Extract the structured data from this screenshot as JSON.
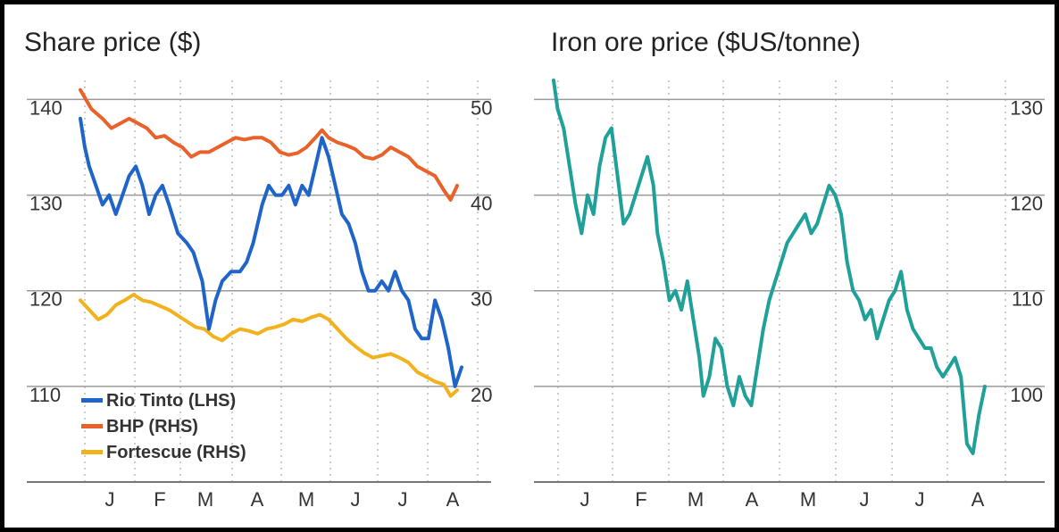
{
  "chart_data": [
    {
      "type": "line",
      "title": "Share price ($)",
      "xlabel": "",
      "ylabel": "",
      "x": [
        "J",
        "F",
        "M",
        "A",
        "M",
        "J",
        "J",
        "A"
      ],
      "y_left": {
        "ticks": [
          "110",
          "120",
          "130",
          "140"
        ],
        "ylim": [
          100,
          142
        ]
      },
      "y_right": {
        "ticks": [
          "20",
          "30",
          "40",
          "50"
        ],
        "ylim": [
          10,
          52
        ]
      },
      "grid": true,
      "legend_position": "bottom-left",
      "series": [
        {
          "name": "Rio Tinto (LHS)",
          "color": "#1f64c8",
          "axis": "left",
          "values": [
            [
              0,
              138
            ],
            [
              0.1,
              135
            ],
            [
              0.2,
              133
            ],
            [
              0.35,
              131
            ],
            [
              0.5,
              129
            ],
            [
              0.65,
              130
            ],
            [
              0.8,
              128
            ],
            [
              0.95,
              130
            ],
            [
              1.1,
              132
            ],
            [
              1.25,
              133
            ],
            [
              1.4,
              131
            ],
            [
              1.55,
              128
            ],
            [
              1.7,
              130
            ],
            [
              1.85,
              131
            ],
            [
              2.0,
              129
            ],
            [
              2.2,
              126
            ],
            [
              2.4,
              125
            ],
            [
              2.55,
              124
            ],
            [
              2.75,
              121
            ],
            [
              2.9,
              116
            ],
            [
              3.05,
              119
            ],
            [
              3.2,
              121
            ],
            [
              3.4,
              122
            ],
            [
              3.6,
              122
            ],
            [
              3.75,
              123
            ],
            [
              3.9,
              125
            ],
            [
              4.1,
              129
            ],
            [
              4.25,
              131
            ],
            [
              4.4,
              130
            ],
            [
              4.55,
              130
            ],
            [
              4.7,
              131
            ],
            [
              4.85,
              129
            ],
            [
              5.0,
              131
            ],
            [
              5.15,
              130
            ],
            [
              5.3,
              133
            ],
            [
              5.45,
              136
            ],
            [
              5.6,
              134
            ],
            [
              5.75,
              131
            ],
            [
              5.9,
              128
            ],
            [
              6.05,
              127
            ],
            [
              6.2,
              125
            ],
            [
              6.35,
              122
            ],
            [
              6.5,
              120
            ],
            [
              6.65,
              120
            ],
            [
              6.8,
              121
            ],
            [
              6.95,
              120
            ],
            [
              7.1,
              122
            ],
            [
              7.25,
              120
            ],
            [
              7.4,
              119
            ],
            [
              7.55,
              116
            ],
            [
              7.7,
              115
            ],
            [
              7.85,
              115
            ],
            [
              8.0,
              119
            ],
            [
              8.15,
              117
            ],
            [
              8.3,
              114
            ],
            [
              8.45,
              110
            ],
            [
              8.6,
              112
            ]
          ]
        },
        {
          "name": "BHP (RHS)",
          "color": "#e8622a",
          "axis": "right",
          "values": [
            [
              0,
              51
            ],
            [
              0.25,
              49
            ],
            [
              0.5,
              48
            ],
            [
              0.7,
              47
            ],
            [
              0.9,
              47.5
            ],
            [
              1.1,
              48
            ],
            [
              1.3,
              47.5
            ],
            [
              1.5,
              47
            ],
            [
              1.7,
              46
            ],
            [
              1.9,
              46.2
            ],
            [
              2.1,
              45.5
            ],
            [
              2.3,
              45
            ],
            [
              2.5,
              44
            ],
            [
              2.7,
              44.5
            ],
            [
              2.9,
              44.5
            ],
            [
              3.1,
              45
            ],
            [
              3.3,
              45.5
            ],
            [
              3.5,
              46
            ],
            [
              3.7,
              45.8
            ],
            [
              3.9,
              46
            ],
            [
              4.1,
              46
            ],
            [
              4.3,
              45.5
            ],
            [
              4.5,
              44.5
            ],
            [
              4.7,
              44.2
            ],
            [
              4.9,
              44.4
            ],
            [
              5.1,
              45
            ],
            [
              5.3,
              46
            ],
            [
              5.45,
              46.8
            ],
            [
              5.6,
              46
            ],
            [
              5.8,
              45.5
            ],
            [
              6.0,
              45.2
            ],
            [
              6.2,
              44.8
            ],
            [
              6.4,
              44
            ],
            [
              6.6,
              43.8
            ],
            [
              6.8,
              44.2
            ],
            [
              7.0,
              45
            ],
            [
              7.2,
              44.5
            ],
            [
              7.4,
              44
            ],
            [
              7.6,
              43
            ],
            [
              7.8,
              42.5
            ],
            [
              8.0,
              42
            ],
            [
              8.2,
              40.5
            ],
            [
              8.35,
              39.5
            ],
            [
              8.5,
              41
            ]
          ]
        },
        {
          "name": "Fortescue (RHS)",
          "color": "#f2b21d",
          "axis": "right",
          "values": [
            [
              0,
              29
            ],
            [
              0.2,
              28
            ],
            [
              0.4,
              27
            ],
            [
              0.6,
              27.5
            ],
            [
              0.8,
              28.5
            ],
            [
              1.0,
              29
            ],
            [
              1.2,
              29.6
            ],
            [
              1.4,
              29
            ],
            [
              1.6,
              28.8
            ],
            [
              1.8,
              28.4
            ],
            [
              2.0,
              28
            ],
            [
              2.2,
              27.4
            ],
            [
              2.4,
              26.8
            ],
            [
              2.6,
              26.2
            ],
            [
              2.8,
              26
            ],
            [
              3.0,
              25.2
            ],
            [
              3.2,
              24.8
            ],
            [
              3.4,
              25.5
            ],
            [
              3.6,
              26
            ],
            [
              3.8,
              25.8
            ],
            [
              4.0,
              25.5
            ],
            [
              4.2,
              26
            ],
            [
              4.4,
              26.2
            ],
            [
              4.6,
              26.5
            ],
            [
              4.8,
              27
            ],
            [
              5.0,
              26.8
            ],
            [
              5.2,
              27.2
            ],
            [
              5.4,
              27.5
            ],
            [
              5.6,
              27
            ],
            [
              5.8,
              26
            ],
            [
              6.0,
              25
            ],
            [
              6.2,
              24.2
            ],
            [
              6.4,
              23.5
            ],
            [
              6.6,
              23
            ],
            [
              6.8,
              23.2
            ],
            [
              7.0,
              23.4
            ],
            [
              7.2,
              23
            ],
            [
              7.4,
              22.5
            ],
            [
              7.6,
              21.5
            ],
            [
              7.8,
              21
            ],
            [
              8.0,
              20.5
            ],
            [
              8.2,
              20.2
            ],
            [
              8.35,
              19
            ],
            [
              8.5,
              19.6
            ]
          ]
        }
      ]
    },
    {
      "type": "line",
      "title": "Iron ore price ($US/tonne)",
      "xlabel": "",
      "ylabel": "",
      "x": [
        "J",
        "F",
        "M",
        "A",
        "M",
        "J",
        "J",
        "A"
      ],
      "y_right": {
        "ticks": [
          "100",
          "110",
          "120",
          "130"
        ],
        "ylim": [
          90,
          132
        ]
      },
      "grid": true,
      "series": [
        {
          "color": "#1fa19a",
          "values": [
            [
              0,
              132
            ],
            [
              0.1,
              129
            ],
            [
              0.25,
              127
            ],
            [
              0.4,
              123
            ],
            [
              0.55,
              119
            ],
            [
              0.7,
              116
            ],
            [
              0.85,
              120
            ],
            [
              1.0,
              118
            ],
            [
              1.15,
              123
            ],
            [
              1.3,
              126
            ],
            [
              1.45,
              127
            ],
            [
              1.6,
              122
            ],
            [
              1.75,
              117
            ],
            [
              1.9,
              118
            ],
            [
              2.05,
              120
            ],
            [
              2.2,
              122
            ],
            [
              2.35,
              124
            ],
            [
              2.5,
              121
            ],
            [
              2.6,
              116
            ],
            [
              2.75,
              113
            ],
            [
              2.9,
              109
            ],
            [
              3.05,
              110
            ],
            [
              3.2,
              108
            ],
            [
              3.35,
              111
            ],
            [
              3.5,
              107
            ],
            [
              3.65,
              103
            ],
            [
              3.75,
              99
            ],
            [
              3.9,
              101
            ],
            [
              4.05,
              105
            ],
            [
              4.2,
              104
            ],
            [
              4.35,
              100
            ],
            [
              4.5,
              98
            ],
            [
              4.65,
              101
            ],
            [
              4.8,
              99
            ],
            [
              4.95,
              98
            ],
            [
              5.1,
              102
            ],
            [
              5.25,
              106
            ],
            [
              5.4,
              109
            ],
            [
              5.55,
              111
            ],
            [
              5.7,
              113
            ],
            [
              5.85,
              115
            ],
            [
              6.0,
              116
            ],
            [
              6.15,
              117
            ],
            [
              6.3,
              118
            ],
            [
              6.45,
              116
            ],
            [
              6.6,
              117
            ],
            [
              6.75,
              119
            ],
            [
              6.9,
              121
            ],
            [
              7.05,
              120
            ],
            [
              7.2,
              118
            ],
            [
              7.35,
              113
            ],
            [
              7.5,
              110
            ],
            [
              7.65,
              109
            ],
            [
              7.8,
              107
            ],
            [
              7.95,
              108
            ],
            [
              8.1,
              105
            ],
            [
              8.25,
              107
            ],
            [
              8.4,
              109
            ],
            [
              8.55,
              110
            ],
            [
              8.7,
              112
            ],
            [
              8.85,
              108
            ],
            [
              9.0,
              106
            ],
            [
              9.15,
              105
            ],
            [
              9.3,
              104
            ],
            [
              9.45,
              104
            ],
            [
              9.6,
              102
            ],
            [
              9.75,
              101
            ],
            [
              9.9,
              102
            ],
            [
              10.05,
              103
            ],
            [
              10.2,
              101
            ],
            [
              10.35,
              94
            ],
            [
              10.5,
              93
            ],
            [
              10.65,
              97
            ],
            [
              10.8,
              100
            ]
          ]
        }
      ]
    }
  ]
}
